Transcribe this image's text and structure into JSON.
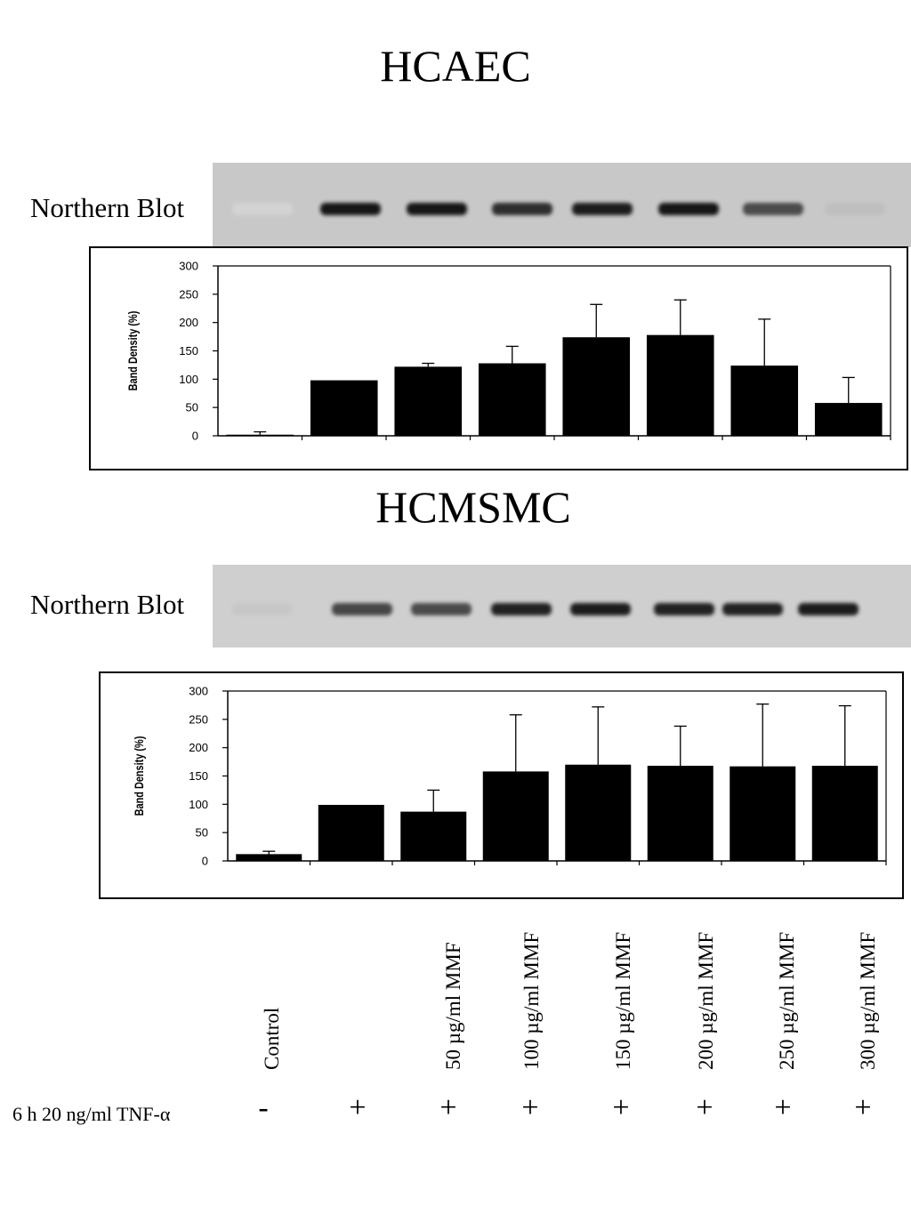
{
  "titles": {
    "top": "HCAEC",
    "bottom": "HCMSMC"
  },
  "blot_label": "Northern Blot",
  "blots": {
    "hcaec": {
      "band_intensity": [
        0.02,
        0.95,
        0.95,
        0.85,
        0.92,
        0.95,
        0.7,
        0.12
      ]
    },
    "hcmsmc": {
      "band_intensity": [
        0.08,
        0.72,
        0.7,
        0.9,
        0.92,
        0.9,
        0.9,
        0.92
      ]
    }
  },
  "chart_data": [
    {
      "type": "bar",
      "title": "HCAEC",
      "ylabel": "Band Density (%)",
      "ylim": [
        0,
        300
      ],
      "yticks": [
        "0",
        "50",
        "100",
        "150",
        "200",
        "250",
        "300"
      ],
      "values": [
        2,
        98,
        122,
        128,
        174,
        178,
        124,
        58
      ],
      "errors": [
        5,
        0,
        6,
        30,
        58,
        62,
        82,
        45
      ],
      "bar_color": "#000000"
    },
    {
      "type": "bar",
      "title": "HCMSMC",
      "ylabel": "Band Density (%)",
      "ylim": [
        0,
        300
      ],
      "yticks": [
        "0",
        "50",
        "100",
        "150",
        "200",
        "250",
        "300"
      ],
      "values": [
        12,
        99,
        87,
        158,
        170,
        168,
        167,
        168
      ],
      "errors": [
        5,
        0,
        38,
        100,
        102,
        70,
        110,
        106
      ],
      "bar_color": "#000000"
    }
  ],
  "lanes": [
    "Control",
    "",
    "50 µg/ml MMF",
    "100 µg/ml MMF",
    "150 µg/ml MMF",
    "200 µg/ml MMF",
    "250 µg/ml MMF",
    "300 µg/ml MMF"
  ],
  "treatment": {
    "label": "6 h 20 ng/ml TNF-α",
    "signs": [
      "-",
      "+",
      "+",
      "+",
      "+",
      "+",
      "+",
      "+"
    ]
  }
}
